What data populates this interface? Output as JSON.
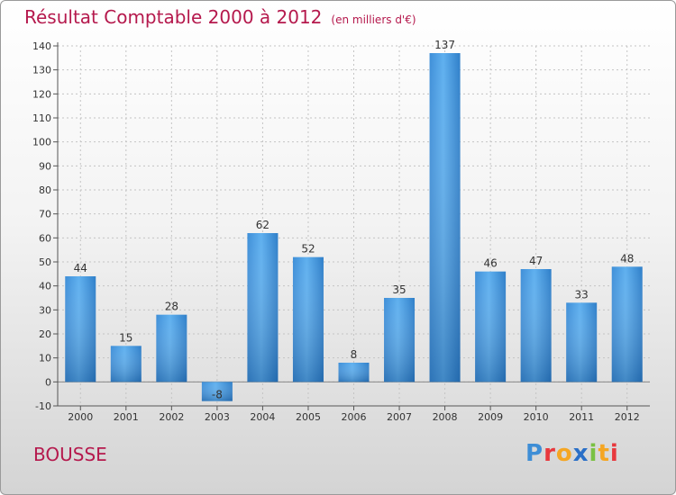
{
  "header": {
    "title": "Résultat Comptable 2000 à 2012",
    "subtitle": "(en milliers d'€)"
  },
  "footer": {
    "commune": "BOUSSE",
    "logo_letters": [
      "P",
      "r",
      "o",
      "x",
      "i",
      "t",
      "i"
    ],
    "logo_colors": [
      "#3e8ed6",
      "#e8383d",
      "#f5a623",
      "#2a6fc7",
      "#7ac143",
      "#f5a623",
      "#e8383d"
    ]
  },
  "chart_data": {
    "type": "bar",
    "categories": [
      "2000",
      "2001",
      "2002",
      "2003",
      "2004",
      "2005",
      "2006",
      "2007",
      "2008",
      "2009",
      "2010",
      "2011",
      "2012"
    ],
    "values": [
      44,
      15,
      28,
      -8,
      62,
      52,
      8,
      35,
      137,
      46,
      47,
      33,
      48
    ],
    "ylim": [
      -10,
      140
    ],
    "yticks": [
      -10,
      0,
      10,
      20,
      30,
      40,
      50,
      60,
      70,
      80,
      90,
      100,
      110,
      120,
      130,
      140
    ],
    "grid": true,
    "bar_color": "#4a9de0",
    "bar_color_dark": "#2c79bf"
  }
}
